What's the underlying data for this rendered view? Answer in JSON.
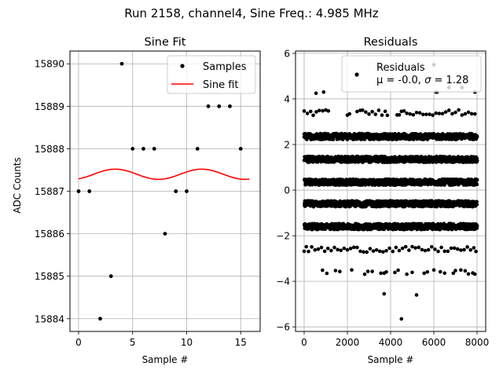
{
  "figure": {
    "suptitle": "Run 2158, channel4, Sine Freq.: 4.985 MHz"
  },
  "chart_data": [
    {
      "type": "scatter",
      "title": "Sine Fit",
      "xlabel": "Sample #",
      "ylabel": "ADC Counts",
      "xlim": [
        -0.8,
        16.8
      ],
      "ylim": [
        15883.7,
        15890.3
      ],
      "xticks": [
        0,
        5,
        10,
        15
      ],
      "yticks": [
        15884,
        15885,
        15886,
        15887,
        15888,
        15889,
        15890
      ],
      "grid": true,
      "legend": {
        "location": "upper right",
        "entries": [
          "Samples",
          "Sine fit"
        ]
      },
      "series": [
        {
          "name": "Samples",
          "kind": "scatter",
          "color": "#000000",
          "x": [
            0,
            1,
            2,
            3,
            4,
            5,
            6,
            7,
            8,
            9,
            10,
            11,
            12,
            13,
            14,
            15
          ],
          "y": [
            15887,
            15887,
            15884,
            15885,
            15890,
            15888,
            15888,
            15888,
            15886,
            15887,
            15887,
            15888,
            15889,
            15889,
            15889,
            15888
          ]
        },
        {
          "name": "Sine fit",
          "kind": "line",
          "color": "#ff0000",
          "model": {
            "offset": 15887.4,
            "amplitude": 0.12,
            "period": 8.0,
            "peak_at": 3.4
          },
          "x_range": [
            0,
            15.8
          ]
        }
      ]
    },
    {
      "type": "scatter",
      "title": "Residuals",
      "xlabel": "Sample #",
      "ylabel": "",
      "xlim": [
        -400,
        8400
      ],
      "ylim": [
        -6.2,
        6.1
      ],
      "xticks": [
        0,
        2000,
        4000,
        6000,
        8000
      ],
      "xtick_labels": [
        "0",
        "2000",
        "4000",
        "6000",
        "8000"
      ],
      "yticks": [
        -6,
        -4,
        -2,
        0,
        2,
        4,
        6
      ],
      "ytick_labels": [
        "−6",
        "−4",
        "−2",
        "0",
        "2",
        "4",
        "6"
      ],
      "grid": true,
      "legend": {
        "location": "upper right",
        "entries": [
          "Residuals"
        ],
        "stats_prefix": "μ = -0.0, ",
        "stats_sigma": "σ",
        "stats_suffix": " = 1.28"
      },
      "series": [
        {
          "name": "Residuals",
          "color": "#000000",
          "x_range": [
            0,
            8000
          ],
          "bands": [
            {
              "level": 2.35,
              "spread": 0.13
            },
            {
              "level": 1.35,
              "spread": 0.13
            },
            {
              "level": 0.35,
              "spread": 0.13
            },
            {
              "level": -0.6,
              "spread": 0.13
            },
            {
              "level": -1.6,
              "spread": 0.13
            }
          ],
          "partial_bands": [
            {
              "level": 3.4,
              "spread": 0.12,
              "x": [
                0,
                150,
                300,
                420,
                560,
                700,
                860,
                1000,
                1120,
                2000,
                2100,
                2450,
                2600,
                2700,
                2850,
                3000,
                3150,
                3300,
                3450,
                3600,
                3750,
                3850,
                4300,
                4400,
                4500,
                4620,
                4750,
                4900,
                5050,
                5200,
                5350,
                5500,
                5650,
                5800,
                5950,
                6100,
                6250,
                6400,
                6550,
                6700,
                6850,
                7000,
                7150,
                7300,
                7450,
                7600,
                7750,
                7900
              ]
            },
            {
              "level": -2.6,
              "spread": 0.12,
              "x": [
                0,
                100,
                200,
                350,
                500,
                650,
                800,
                950,
                1100,
                1250,
                1400,
                1550,
                1700,
                1850,
                2000,
                2150,
                2300,
                2450,
                2600,
                2750,
                2900,
                3050,
                3200,
                3350,
                3500,
                3650,
                3800,
                3950,
                4100,
                4250,
                4400,
                4550,
                4700,
                4850,
                5000,
                5150,
                5300,
                5450,
                5600,
                5750,
                5900,
                6050,
                6200,
                6350,
                6500,
                6650,
                6800,
                6950,
                7100,
                7250,
                7400,
                7550,
                7700,
                7850,
                7950
              ]
            },
            {
              "level": -3.6,
              "spread": 0.1,
              "x": [
                850,
                1050,
                1450,
                1650,
                2200,
                2800,
                2950,
                3150,
                3550,
                3700,
                3800,
                4200,
                4350,
                4750,
                5000,
                5550,
                5700,
                6000,
                6300,
                6500,
                6900,
                7000,
                7250,
                7450,
                7600,
                7800,
                7900
              ]
            }
          ],
          "outliers": [
            {
              "x": 550,
              "y": 4.25
            },
            {
              "x": 900,
              "y": 4.3
            },
            {
              "x": 6000,
              "y": 5.5
            },
            {
              "x": 6100,
              "y": 4.3
            },
            {
              "x": 6150,
              "y": 4.3
            },
            {
              "x": 6700,
              "y": 4.5
            },
            {
              "x": 7300,
              "y": 4.5
            },
            {
              "x": 7900,
              "y": 4.3
            },
            {
              "x": 3700,
              "y": -4.55
            },
            {
              "x": 5200,
              "y": -4.6
            },
            {
              "x": 4500,
              "y": -5.65
            }
          ]
        }
      ]
    }
  ]
}
